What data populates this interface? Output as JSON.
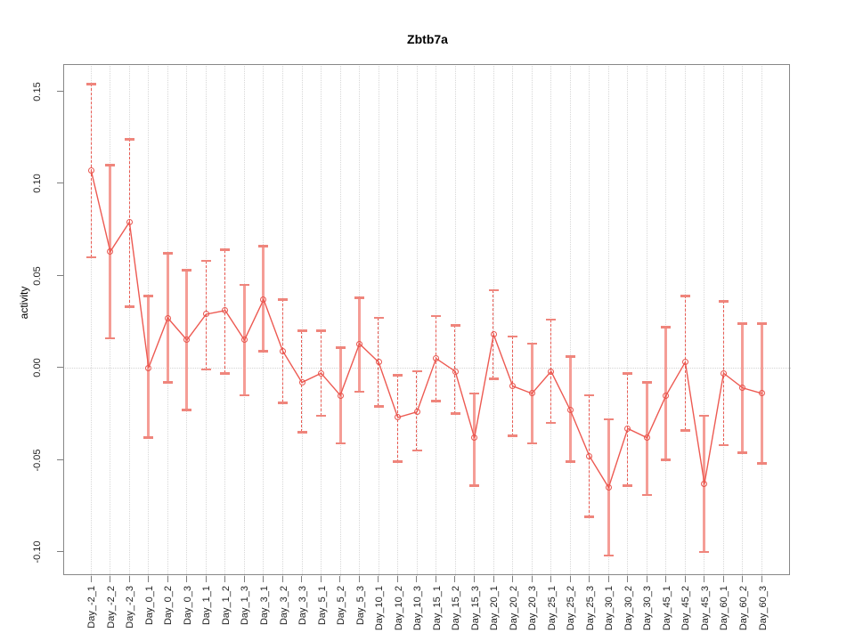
{
  "title": "Zbtb7a",
  "axes": {
    "y_label": "activity",
    "y_ticks": [
      "0.15",
      "0.10",
      "0.05",
      "0.00",
      "-0.05",
      "-0.10"
    ],
    "y_tick_values": [
      0.15,
      0.1,
      0.05,
      0.0,
      -0.05,
      -0.1
    ]
  },
  "colors": {
    "series_line": "#ed5a52",
    "marker_stroke": "#e8564f",
    "errorbar_dashed": "#e85a52",
    "errorbar_solid": "#f59d96",
    "errorbar_cap": "#ef857c",
    "frame": "#878787",
    "gridline": "#d7d7d7",
    "title_text": "#000000"
  },
  "chart_data": {
    "type": "scatter",
    "subtype": "points-with-error-bars-and-connecting-line",
    "title": "Zbtb7a",
    "xlabel": "",
    "ylabel": "activity",
    "ylim": [
      -0.113,
      0.165
    ],
    "y_ticks": [
      0.15,
      0.1,
      0.05,
      0.0,
      -0.05,
      -0.1
    ],
    "grid": "vertical-dotted-per-category",
    "zero_reference_line": true,
    "legend": "none",
    "categories": [
      "Day_-2_1",
      "Day_-2_2",
      "Day_-2_3",
      "Day_0_1",
      "Day_0_2",
      "Day_0_3",
      "Day_1_1",
      "Day_1_2",
      "Day_1_3",
      "Day_3_1",
      "Day_3_2",
      "Day_3_3",
      "Day_5_1",
      "Day_5_2",
      "Day_5_3",
      "Day_10_1",
      "Day_10_2",
      "Day_10_3",
      "Day_15_1",
      "Day_15_2",
      "Day_15_3",
      "Day_20_1",
      "Day_20_2",
      "Day_20_3",
      "Day_25_1",
      "Day_25_2",
      "Day_25_3",
      "Day_30_1",
      "Day_30_2",
      "Day_30_3",
      "Day_45_1",
      "Day_45_2",
      "Day_45_3",
      "Day_60_1",
      "Day_60_2",
      "Day_60_3"
    ],
    "series": [
      {
        "name": "activity",
        "values": [
          0.107,
          0.063,
          0.079,
          0.0,
          0.027,
          0.015,
          0.029,
          0.031,
          0.015,
          0.037,
          0.009,
          -0.008,
          -0.003,
          -0.015,
          0.013,
          0.003,
          -0.027,
          -0.024,
          0.005,
          -0.002,
          -0.038,
          0.018,
          -0.01,
          -0.014,
          -0.002,
          -0.023,
          -0.048,
          -0.065,
          -0.033,
          -0.038,
          -0.015,
          0.003,
          -0.063,
          -0.003,
          -0.011,
          -0.014
        ],
        "ci_high": [
          0.154,
          0.11,
          0.124,
          0.039,
          0.062,
          0.053,
          0.058,
          0.064,
          0.045,
          0.066,
          0.037,
          0.02,
          0.02,
          0.011,
          0.038,
          0.027,
          -0.004,
          -0.002,
          0.028,
          0.023,
          -0.014,
          0.042,
          0.017,
          0.013,
          0.026,
          0.006,
          -0.015,
          -0.028,
          -0.003,
          -0.008,
          0.022,
          0.039,
          -0.026,
          0.036,
          0.024,
          0.024
        ],
        "ci_low": [
          0.06,
          0.016,
          0.033,
          -0.038,
          -0.008,
          -0.023,
          -0.001,
          -0.003,
          -0.015,
          0.009,
          -0.019,
          -0.035,
          -0.026,
          -0.041,
          -0.013,
          -0.021,
          -0.051,
          -0.045,
          -0.018,
          -0.025,
          -0.064,
          -0.006,
          -0.037,
          -0.041,
          -0.03,
          -0.051,
          -0.081,
          -0.102,
          -0.064,
          -0.069,
          -0.05,
          -0.034,
          -0.1,
          -0.042,
          -0.046,
          -0.052
        ],
        "bar_styles": [
          "dashed",
          "solid",
          "dashed",
          "solid",
          "solid",
          "solid",
          "dashed",
          "dashed",
          "solid",
          "solid",
          "dashed",
          "dashed",
          "dashed",
          "solid",
          "solid",
          "dashed",
          "dashed",
          "dashed",
          "dashed",
          "dashed",
          "solid",
          "dashed",
          "dashed",
          "solid",
          "dashed",
          "solid",
          "dashed",
          "solid",
          "dashed",
          "solid",
          "solid",
          "dashed",
          "solid",
          "dashed",
          "solid",
          "solid"
        ]
      }
    ]
  }
}
